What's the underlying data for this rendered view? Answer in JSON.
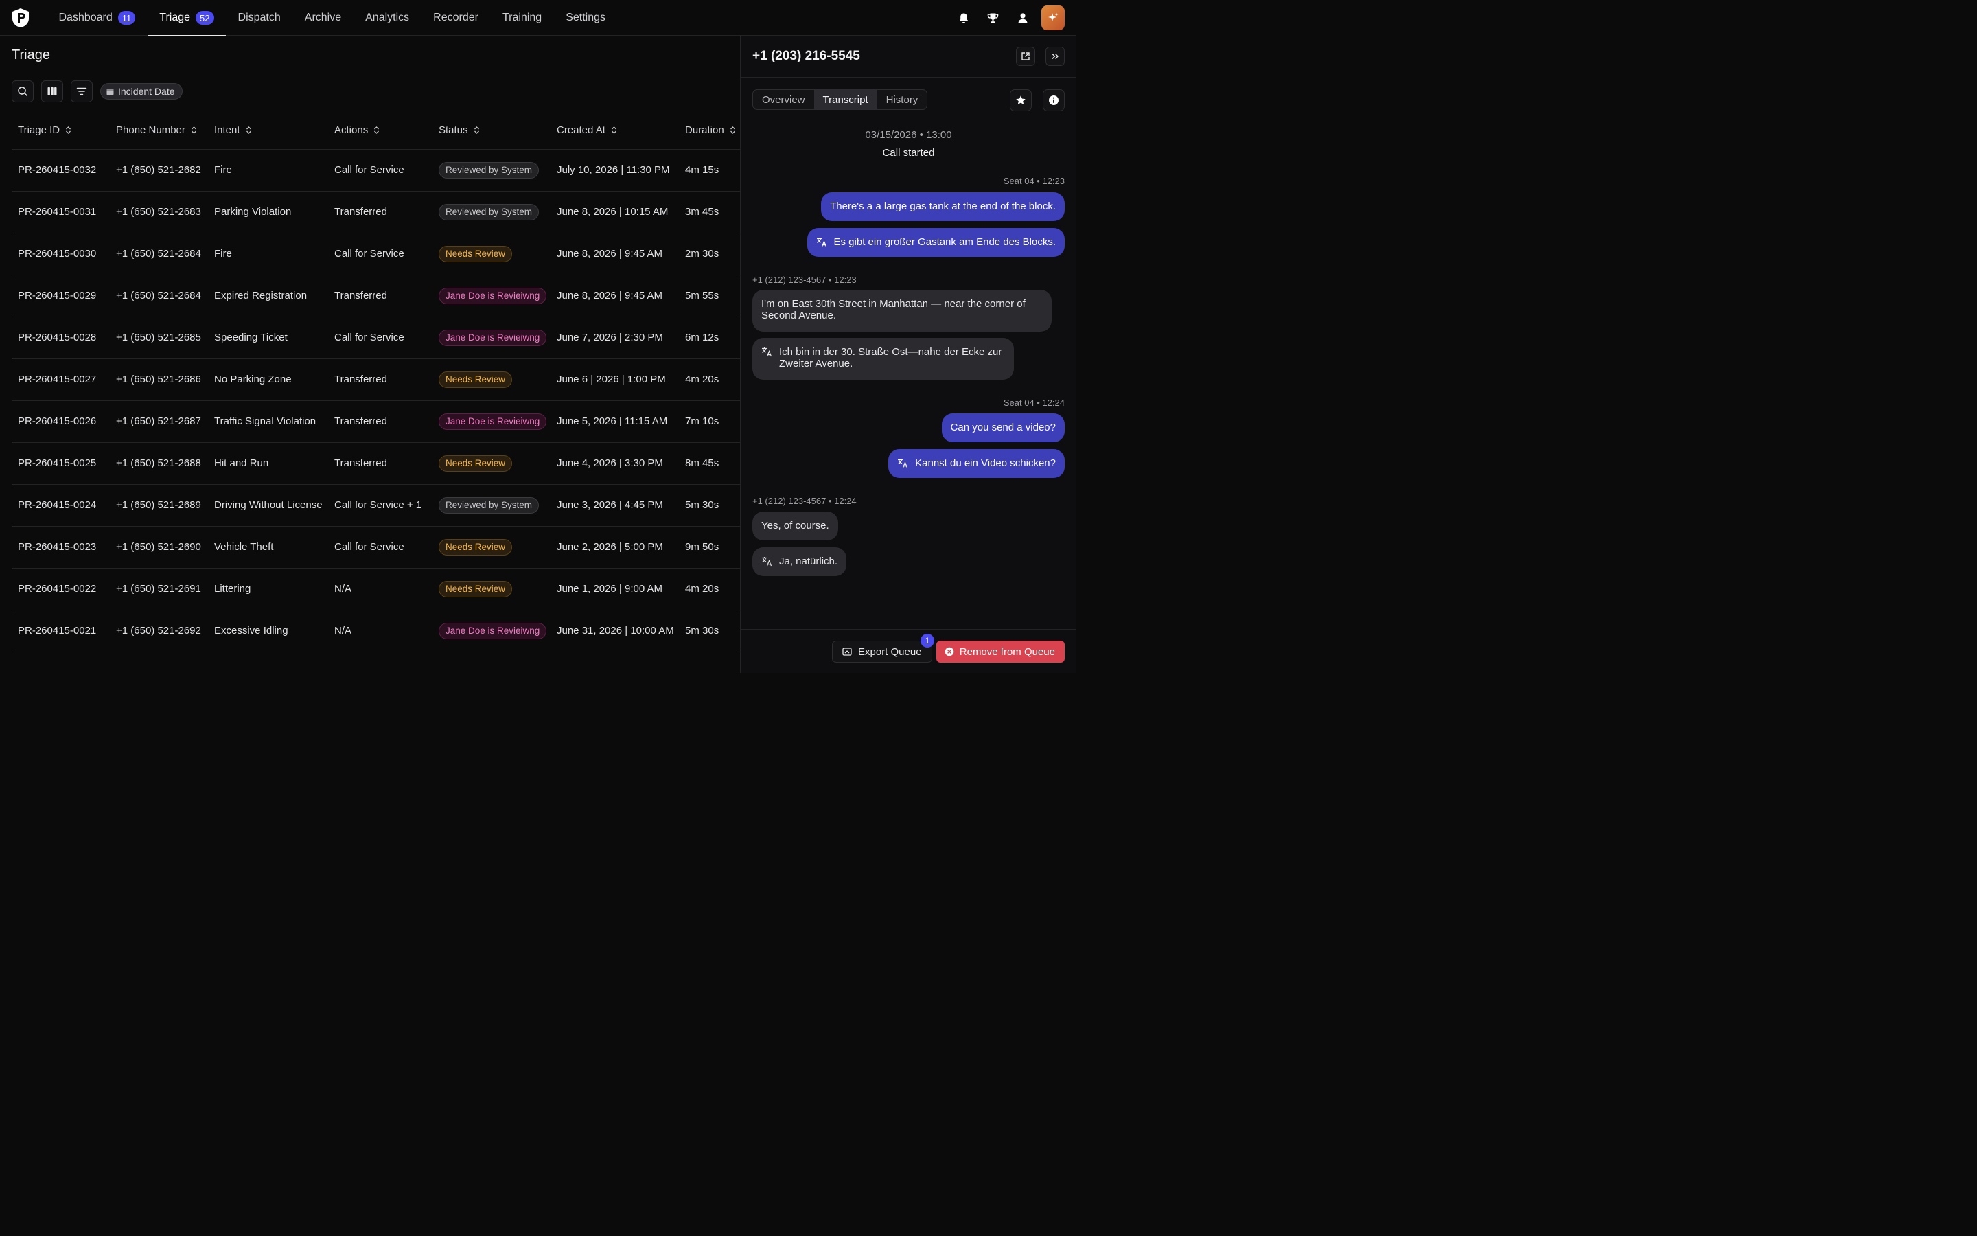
{
  "nav": {
    "items": [
      {
        "label": "Dashboard",
        "badge": "11"
      },
      {
        "label": "Triage",
        "badge": "52"
      },
      {
        "label": "Dispatch",
        "badge": ""
      },
      {
        "label": "Archive",
        "badge": ""
      },
      {
        "label": "Analytics",
        "badge": ""
      },
      {
        "label": "Recorder",
        "badge": ""
      },
      {
        "label": "Training",
        "badge": ""
      },
      {
        "label": "Settings",
        "badge": ""
      }
    ],
    "active": "Triage",
    "icons": [
      "bell-icon",
      "trophy-icon",
      "user-icon",
      "sparkle-icon"
    ]
  },
  "page": {
    "title": "Triage",
    "filter_chip": "Incident Date"
  },
  "table": {
    "columns": [
      "Triage ID",
      "Phone Number",
      "Intent",
      "Actions",
      "Status",
      "Created At",
      "Duration"
    ],
    "rows": [
      {
        "id": "PR-260415-0032",
        "phone": "+1 (650) 521-2682",
        "intent": "Fire",
        "actions": "Call for Service",
        "status": "Reviewed by System",
        "status_type": "system",
        "created": "July 10, 2026 | 11:30 PM",
        "duration": "4m 15s"
      },
      {
        "id": "PR-260415-0031",
        "phone": "+1 (650) 521-2683",
        "intent": "Parking Violation",
        "actions": "Transferred",
        "status": "Reviewed by System",
        "status_type": "system",
        "created": "June 8, 2026 | 10:15 AM",
        "duration": "3m 45s"
      },
      {
        "id": "PR-260415-0030",
        "phone": "+1 (650) 521-2684",
        "intent": "Fire",
        "actions": "Call for Service",
        "status": "Needs Review",
        "status_type": "needs",
        "created": "June 8, 2026 | 9:45 AM",
        "duration": "2m 30s"
      },
      {
        "id": "PR-260415-0029",
        "phone": "+1 (650) 521-2684",
        "intent": "Expired Registration",
        "actions": "Transferred",
        "status": "Jane Doe is Revieiwng",
        "status_type": "jane",
        "created": "June 8, 2026 | 9:45 AM",
        "duration": "5m 55s"
      },
      {
        "id": "PR-260415-0028",
        "phone": "+1 (650) 521-2685",
        "intent": "Speeding Ticket",
        "actions": "Call for Service",
        "status": "Jane Doe is Revieiwng",
        "status_type": "jane",
        "created": "June 7, 2026 | 2:30 PM",
        "duration": "6m 12s"
      },
      {
        "id": "PR-260415-0027",
        "phone": "+1 (650) 521-2686",
        "intent": "No Parking Zone",
        "actions": "Transferred",
        "status": "Needs Review",
        "status_type": "needs",
        "created": "June 6 | 2026 | 1:00 PM",
        "duration": "4m 20s"
      },
      {
        "id": "PR-260415-0026",
        "phone": "+1 (650) 521-2687",
        "intent": "Traffic Signal Violation",
        "actions": "Transferred",
        "status": "Jane Doe is Revieiwng",
        "status_type": "jane",
        "created": "June 5, 2026 | 11:15 AM",
        "duration": "7m 10s"
      },
      {
        "id": "PR-260415-0025",
        "phone": "+1 (650) 521-2688",
        "intent": "Hit and Run",
        "actions": "Transferred",
        "status": "Needs Review",
        "status_type": "needs",
        "created": "June 4, 2026 | 3:30 PM",
        "duration": "8m 45s"
      },
      {
        "id": "PR-260415-0024",
        "phone": "+1 (650) 521-2689",
        "intent": "Driving Without License",
        "actions": "Call for Service + 1",
        "status": "Reviewed by System",
        "status_type": "system",
        "created": "June 3, 2026 | 4:45 PM",
        "duration": "5m 30s"
      },
      {
        "id": "PR-260415-0023",
        "phone": "+1 (650) 521-2690",
        "intent": "Vehicle Theft",
        "actions": "Call for Service",
        "status": "Needs Review",
        "status_type": "needs",
        "created": "June 2, 2026 | 5:00 PM",
        "duration": "9m 50s"
      },
      {
        "id": "PR-260415-0022",
        "phone": "+1 (650) 521-2691",
        "intent": "Littering",
        "actions": "N/A",
        "status": "Needs Review",
        "status_type": "needs",
        "created": "June 1, 2026 | 9:00 AM",
        "duration": "4m 20s"
      },
      {
        "id": "PR-260415-0021",
        "phone": "+1 (650) 521-2692",
        "intent": "Excessive Idling",
        "actions": "N/A",
        "status": "Jane Doe is Revieiwng",
        "status_type": "jane",
        "created": "June 31, 2026 | 10:00 AM",
        "duration": "5m 30s"
      }
    ]
  },
  "panel": {
    "title": "+1 (203) 216-5545",
    "tabs": [
      "Overview",
      "Transcript",
      "History"
    ],
    "active_tab": "Transcript",
    "call_date": "03/15/2026 • 13:00",
    "call_label": "Call started",
    "transcript": [
      {
        "meta": "Seat 04 • 12:23",
        "text": "There's a a large gas tank at the end of the block.",
        "translation": "Es gibt ein großer Gastank am Ende des Blocks."
      },
      {
        "meta": "+1 (212) 123-4567 • 12:23",
        "text": "I'm on East 30th Street in Manhattan — near the corner of Second Avenue.",
        "translation": "Ich bin in der 30. Straße Ost—nahe der Ecke zur Zweiter Avenue."
      },
      {
        "meta": "Seat 04 • 12:24",
        "text": "Can you send a video?",
        "translation": "Kannst du ein Video schicken?"
      },
      {
        "meta": "+1 (212) 123-4567 • 12:24",
        "text": "Yes, of course.",
        "translation": "Ja, natürlich."
      }
    ],
    "export_label": "Export Queue",
    "export_count": "1",
    "remove_label": "Remove from Queue"
  },
  "colors": {
    "accent": "#4a4af0",
    "outgoing_bubble": "#3c3fb8",
    "danger": "#d9434f",
    "needs_review": "#f5b547",
    "jane_reviewing": "#f27bc2"
  }
}
